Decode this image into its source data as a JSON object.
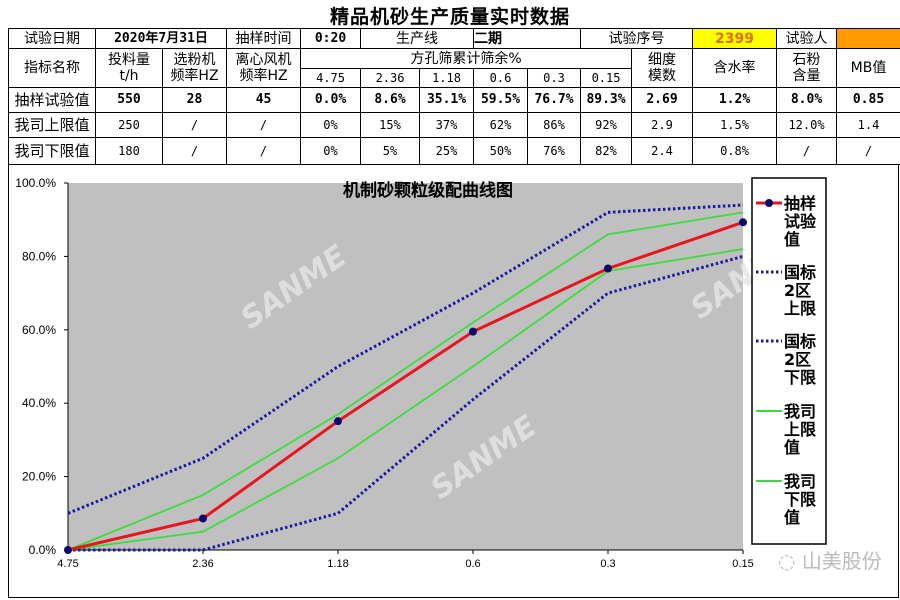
{
  "page_title": "精品机砂生产质量实时数据",
  "table": {
    "row1": {
      "date_label": "试验日期",
      "date_value": "2020年7月31日",
      "time_label": "抽样时间",
      "time_value": "0:20",
      "line_label": "生产线",
      "line_value": "二期",
      "seq_label": "试验序号",
      "seq_value": "2399",
      "tester_label": "试验人"
    },
    "header": {
      "name": "指标名称",
      "feed": [
        "投料量",
        "t/h"
      ],
      "separator": [
        "选粉机",
        "频率HZ"
      ],
      "fan": [
        "离心风机",
        "频率HZ"
      ],
      "sieve_group": "方孔筛累计筛余%",
      "sieves": [
        "4.75",
        "2.36",
        "1.18",
        "0.6",
        "0.3",
        "0.15"
      ],
      "fineness": [
        "细度",
        "模数"
      ],
      "moisture": "含水率",
      "powder": [
        "石粉",
        "含量"
      ],
      "mb": "MB值"
    },
    "rows": [
      {
        "label": "抽样试验值",
        "values": [
          "550",
          "28",
          "45",
          "0.0%",
          "8.6%",
          "35.1%",
          "59.5%",
          "76.7%",
          "89.3%",
          "2.69",
          "1.2%",
          "8.0%",
          "0.85"
        ]
      },
      {
        "label": "我司上限值",
        "values": [
          "250",
          "/",
          "/",
          "0%",
          "15%",
          "37%",
          "62%",
          "86%",
          "92%",
          "2.9",
          "1.5%",
          "12.0%",
          "1.4"
        ]
      },
      {
        "label": "我司下限值",
        "values": [
          "180",
          "/",
          "/",
          "0%",
          "5%",
          "25%",
          "50%",
          "76%",
          "82%",
          "2.4",
          "0.8%",
          "/",
          "/"
        ]
      }
    ]
  },
  "chart_data": {
    "type": "line",
    "title": "机制砂颗粒级配曲线图",
    "categories": [
      "4.75",
      "2.36",
      "1.18",
      "0.6",
      "0.3",
      "0.15"
    ],
    "ylim": [
      0,
      100
    ],
    "yticks": [
      "0.0%",
      "20.0%",
      "40.0%",
      "60.0%",
      "80.0%",
      "100.0%"
    ],
    "legend_position": "right",
    "plot_background": "#c0c0c0",
    "grid": false,
    "series": [
      {
        "name": "抽样试验值",
        "values": [
          0,
          8.6,
          35.1,
          59.5,
          76.7,
          89.3
        ],
        "color": "#e8141e",
        "style": "solid-markers"
      },
      {
        "name": "国标2区上限",
        "values": [
          10,
          25,
          50,
          70,
          92,
          94
        ],
        "color": "#1a1aa0",
        "style": "dotted"
      },
      {
        "name": "国标2区下限",
        "values": [
          0,
          0,
          10,
          41,
          70,
          80
        ],
        "color": "#1a1aa0",
        "style": "dotted"
      },
      {
        "name": "我司上限值",
        "values": [
          0,
          15,
          37,
          62,
          86,
          92
        ],
        "color": "#3cdc3c",
        "style": "solid"
      },
      {
        "name": "我司下限值",
        "values": [
          0,
          5,
          25,
          50,
          76,
          82
        ],
        "color": "#3cdc3c",
        "style": "solid"
      }
    ],
    "legend_labels": [
      [
        "抽样",
        "试验",
        "值"
      ],
      [
        "国标",
        "2区",
        "上限"
      ],
      [
        "国标",
        "2区",
        "下限"
      ],
      [
        "我司",
        "上限",
        "值"
      ],
      [
        "我司",
        "下限",
        "值"
      ]
    ]
  },
  "watermarks": {
    "chart": "SANME",
    "corner": "山美股份"
  }
}
